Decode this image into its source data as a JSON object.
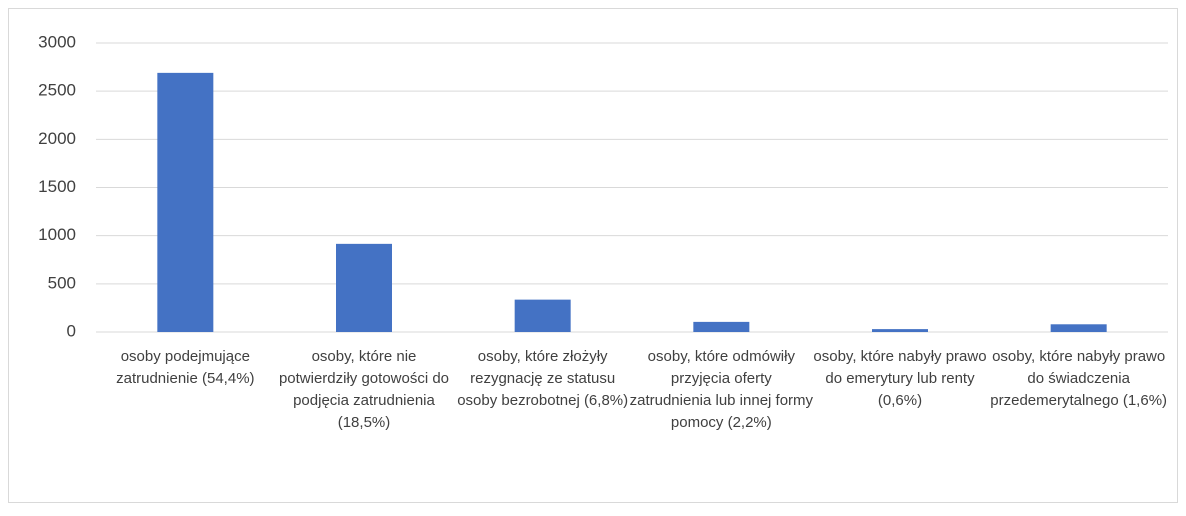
{
  "chart_data": {
    "type": "bar",
    "categories": [
      "osoby podejmujące zatrudnienie (54,4%)",
      "osoby, które nie potwierdziły gotowości do podjęcia zatrudnienia (18,5%)",
      "osoby, które złożyły rezygnację ze statusu osoby bezrobotnej (6,8%)",
      "osoby, które odmówiły przyjęcia oferty zatrudnienia lub innej formy pomocy (2,2%)",
      "osoby, które nabyły prawo do emerytury lub renty (0,6%)",
      "osoby, które nabyły prawo do świadczenia przedemerytalnego (1,6%)"
    ],
    "values": [
      2690,
      915,
      336,
      105,
      30,
      80
    ],
    "color": "#4472c4",
    "ylim": [
      0,
      3000
    ],
    "yticks": [
      0,
      500,
      1000,
      1500,
      2000,
      2500,
      3000
    ],
    "grid": true
  }
}
